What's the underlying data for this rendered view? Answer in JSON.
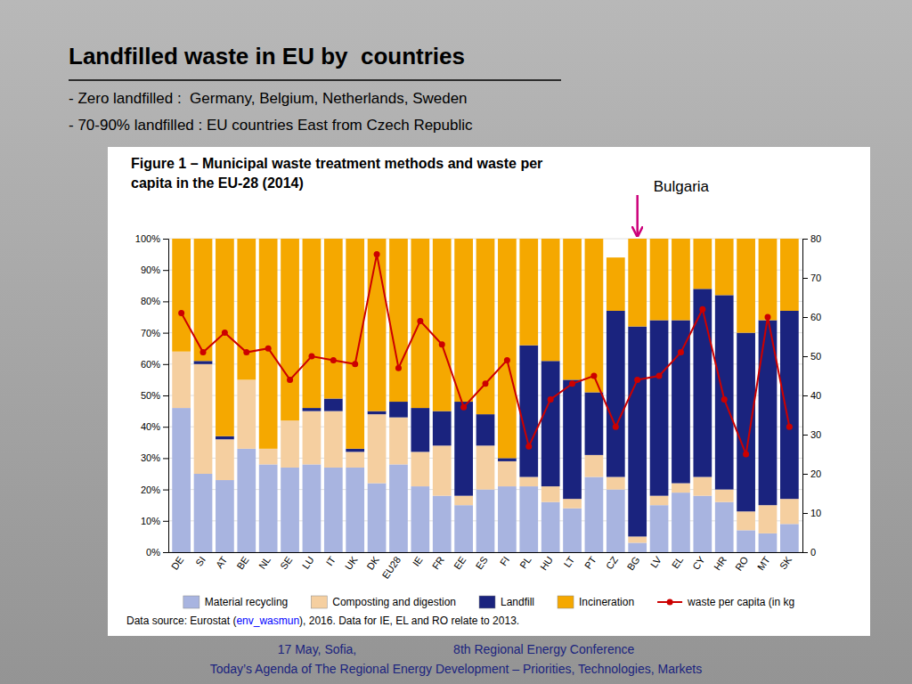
{
  "chart_data": {
    "type": "bar",
    "title": [
      "Figure 1 – Municipal waste treatment methods and waste per",
      "capita in the EU-28 (2014)"
    ],
    "annotations": [
      {
        "text": "Landfilled waste in EU by  countries"
      },
      {
        "text": "- Zero landfilled :  Germany, Belgium, Netherlands, Sweden"
      },
      {
        "text": "- 70-90% landfilled : EU countries East from Czech Republic"
      },
      {
        "text": "Bulgaria",
        "category": "BG"
      },
      {
        "text": "17 May, Sofia,                            8th Regional Energy Conference",
        "color": "#1a237e"
      },
      {
        "text": "Today’s Agenda of The Regional Energy Development – Priorities, Technologies, Markets",
        "color": "#1a237e"
      },
      {
        "text": "Data source: Eurostat ("
      },
      {
        "text": "env_wasmun",
        "color": "blue"
      },
      {
        "text": "), 2016. Data for IE, EL and RO relate to 2013."
      }
    ],
    "categories": [
      "DE",
      "SI",
      "AT",
      "BE",
      "NL",
      "SE",
      "LU",
      "IT",
      "UK",
      "DK",
      "EU28",
      "IE",
      "FR",
      "EE",
      "ES",
      "FI",
      "PL",
      "HU",
      "LT",
      "PT",
      "CZ",
      "BG",
      "LV",
      "EL",
      "CY",
      "HR",
      "RO",
      "MT",
      "SK"
    ],
    "series": [
      {
        "name": "Material recycling",
        "color": "#a8b4e0",
        "values": [
          46,
          25,
          23,
          33,
          28,
          27,
          28,
          27,
          27,
          22,
          28,
          21,
          18,
          15,
          20,
          21,
          21,
          16,
          14,
          24,
          20,
          3,
          15,
          19,
          18,
          16,
          7,
          6,
          9
        ]
      },
      {
        "name": "Composting and digestion",
        "color": "#f5cfa0",
        "values": [
          18,
          35,
          13,
          22,
          5,
          15,
          17,
          18,
          5,
          22,
          15,
          11,
          16,
          3,
          14,
          8,
          3,
          5,
          3,
          7,
          4,
          2,
          3,
          3,
          6,
          4,
          6,
          9,
          8
        ]
      },
      {
        "name": "Landfill",
        "color": "#1a237e",
        "values": [
          0,
          1,
          1,
          0,
          0,
          0,
          1,
          4,
          1,
          1,
          5,
          14,
          11,
          30,
          10,
          1,
          42,
          40,
          38,
          20,
          53,
          67,
          56,
          52,
          60,
          62,
          57,
          59,
          60
        ]
      },
      {
        "name": "Incineration",
        "color": "#f5a800",
        "values": [
          36,
          39,
          63,
          45,
          67,
          58,
          54,
          51,
          67,
          55,
          52,
          54,
          55,
          52,
          56,
          70,
          34,
          39,
          45,
          49,
          17,
          28,
          26,
          26,
          16,
          18,
          30,
          26,
          23
        ]
      },
      {
        "name": "waste per capita (in kg",
        "type": "line",
        "axis": "y2",
        "color": "#cc0000",
        "marker": "circle",
        "values": [
          61,
          51,
          56,
          51,
          52,
          44,
          50,
          49,
          48,
          76,
          47,
          59,
          53,
          37,
          43,
          49,
          27,
          39,
          43,
          45,
          32,
          44,
          45,
          51,
          62,
          39,
          25,
          60,
          32
        ]
      }
    ],
    "stacked": true,
    "ylim": [
      0,
      100
    ],
    "yticks": [
      {
        "value": 0,
        "label": "0%"
      },
      {
        "value": 10,
        "label": "10%"
      },
      {
        "value": 20,
        "label": "20%"
      },
      {
        "value": 30,
        "label": "30%"
      },
      {
        "value": 40,
        "label": "40%"
      },
      {
        "value": 50,
        "label": "50%"
      },
      {
        "value": 60,
        "label": "60%"
      },
      {
        "value": 70,
        "label": "70%"
      },
      {
        "value": 80,
        "label": "80%"
      },
      {
        "value": 90,
        "label": "90%"
      },
      {
        "value": 100,
        "label": "100%"
      }
    ],
    "y2lim": [
      0,
      80
    ],
    "y2ticks": [
      0,
      10,
      20,
      30,
      40,
      50,
      60,
      70,
      80
    ],
    "grid": true,
    "legend": "bottom"
  }
}
